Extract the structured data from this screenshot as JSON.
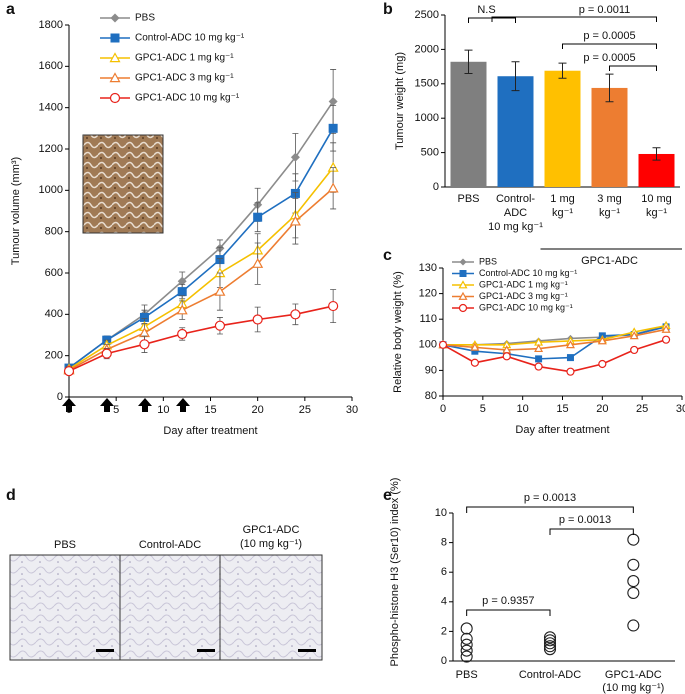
{
  "chart_data": [
    {
      "type": "line",
      "panel_label": "a",
      "xlabel": "Day after treatment",
      "ylabel": "Tumour volume (mm³)",
      "x": [
        0,
        4,
        8,
        12,
        16,
        20,
        24,
        28
      ],
      "xlim": [
        0,
        30
      ],
      "xticks": [
        0,
        5,
        10,
        15,
        20,
        25,
        30
      ],
      "ylim": [
        0,
        1800
      ],
      "yticks": [
        0,
        200,
        400,
        600,
        800,
        1000,
        1200,
        1400,
        1600,
        1800
      ],
      "legend": "top-left",
      "series": [
        {
          "name": "PBS",
          "color": "#8c8c8c",
          "marker": "diamond",
          "values": [
            140,
            275,
            400,
            560,
            720,
            930,
            1160,
            1430
          ],
          "errors": [
            15,
            20,
            45,
            45,
            40,
            80,
            115,
            155
          ]
        },
        {
          "name": "Control-ADC 10 mg kg⁻¹",
          "color": "#1f6fc0",
          "marker": "square",
          "values": [
            140,
            275,
            385,
            510,
            665,
            870,
            985,
            1300
          ],
          "errors": [
            15,
            20,
            35,
            35,
            60,
            70,
            95,
            110
          ]
        },
        {
          "name": "GPC1-ADC 1 mg kg⁻¹",
          "color": "#f5c000",
          "marker": "triangle-open",
          "values": [
            135,
            250,
            340,
            450,
            600,
            710,
            880,
            1110
          ],
          "errors": [
            15,
            25,
            40,
            40,
            70,
            80,
            110,
            120
          ]
        },
        {
          "name": "GPC1-ADC 3 mg kg⁻¹",
          "color": "#ed7d31",
          "marker": "triangle-open",
          "values": [
            130,
            230,
            310,
            420,
            510,
            645,
            850,
            1010
          ],
          "errors": [
            15,
            25,
            45,
            45,
            90,
            100,
            110,
            100
          ]
        },
        {
          "name": "GPC1-ADC 10 mg kg⁻¹",
          "color": "#e8231b",
          "marker": "circle-open",
          "values": [
            125,
            210,
            255,
            305,
            345,
            375,
            400,
            440
          ],
          "errors": [
            15,
            25,
            40,
            30,
            40,
            60,
            50,
            80
          ]
        }
      ]
    },
    {
      "type": "bar",
      "panel_label": "b",
      "ylabel": "Tumour weight (mg)",
      "categories": [
        [
          "PBS"
        ],
        [
          "Control-",
          "ADC",
          "10 mg kg⁻¹"
        ],
        [
          "1 mg",
          "kg⁻¹"
        ],
        [
          "3 mg",
          "kg⁻¹"
        ],
        [
          "10 mg",
          "kg⁻¹"
        ]
      ],
      "group_label": "GPC1-ADC",
      "values": [
        1820,
        1610,
        1690,
        1440,
        480
      ],
      "errors": [
        170,
        210,
        110,
        200,
        90
      ],
      "colors": [
        "#7f7f7f",
        "#1f6fc0",
        "#ffc000",
        "#ed7d31",
        "#ff0000"
      ],
      "ylim": [
        0,
        2500
      ],
      "yticks": [
        0,
        500,
        1000,
        1500,
        2000,
        2500
      ],
      "annotations": [
        "N.S",
        "p = 0.0011",
        "p = 0.0005",
        "p = 0.0005"
      ]
    },
    {
      "type": "line",
      "panel_label": "c",
      "xlabel": "Day after treatment",
      "ylabel": "Relative body weight (%)",
      "x": [
        0,
        4,
        8,
        12,
        16,
        20,
        24,
        28
      ],
      "xlim": [
        0,
        30
      ],
      "xticks": [
        0,
        5,
        10,
        15,
        20,
        25,
        30
      ],
      "ylim": [
        80,
        130
      ],
      "yticks": [
        80,
        90,
        100,
        110,
        120,
        130
      ],
      "legend": "top-left",
      "series": [
        {
          "name": "PBS",
          "color": "#8c8c8c",
          "marker": "diamond",
          "values": [
            100,
            100,
            100.5,
            101.5,
            102.5,
            103,
            104,
            107.5
          ]
        },
        {
          "name": "Control-ADC 10 mg kg⁻¹",
          "color": "#1f6fc0",
          "marker": "square",
          "values": [
            100,
            97.5,
            96.5,
            94.5,
            95,
            103.5,
            104,
            107
          ]
        },
        {
          "name": "GPC1-ADC 1 mg kg⁻¹",
          "color": "#f5c000",
          "marker": "triangle-open",
          "values": [
            100,
            100,
            100,
            101,
            101.5,
            102,
            105,
            107.5
          ]
        },
        {
          "name": "GPC1-ADC 3 mg kg⁻¹",
          "color": "#ed7d31",
          "marker": "triangle-open",
          "values": [
            100,
            99,
            98,
            98.5,
            100,
            101.5,
            103.5,
            106
          ]
        },
        {
          "name": "GPC1-ADC 10 mg kg⁻¹",
          "color": "#e8231b",
          "marker": "circle-open",
          "values": [
            100,
            93,
            95.5,
            91.5,
            89.5,
            92.5,
            98,
            102
          ]
        }
      ]
    },
    {
      "type": "strip",
      "panel_label": "e",
      "ylabel": "Phospho-histone H3 (Ser10) index (%)",
      "categories": [
        [
          "PBS"
        ],
        [
          "Control-ADC"
        ],
        [
          "GPC1-ADC",
          "(10 mg kg⁻¹)"
        ]
      ],
      "values": [
        [
          0.3,
          0.7,
          1.1,
          1.5,
          2.2
        ],
        [
          0.8,
          1.0,
          1.2,
          1.4,
          1.6
        ],
        [
          2.4,
          4.6,
          5.4,
          6.5,
          8.2
        ]
      ],
      "ylim": [
        0,
        10
      ],
      "yticks": [
        0,
        2,
        4,
        6,
        8,
        10
      ],
      "annotations": [
        "p = 0.0013",
        "p = 0.0013",
        "p = 0.9357"
      ]
    }
  ],
  "panel_d": {
    "label": "d",
    "captions": [
      [
        "PBS"
      ],
      [
        "Control-ADC"
      ],
      [
        "GPC1-ADC",
        "(10 mg kg⁻¹)"
      ]
    ]
  }
}
